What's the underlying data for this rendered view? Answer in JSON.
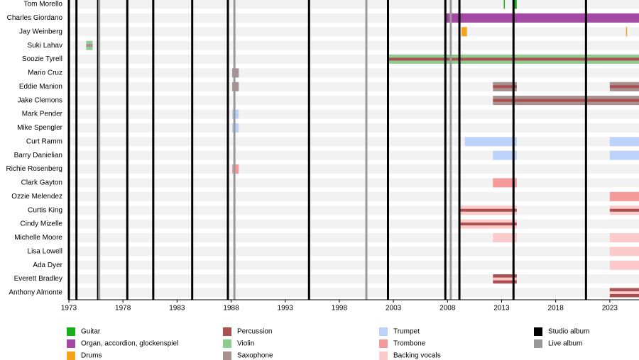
{
  "chart_data": {
    "type": "timeline",
    "xlim": [
      1973,
      2025.7
    ],
    "xticks": [
      1973,
      1978,
      1983,
      1988,
      1993,
      1998,
      2003,
      2008,
      2013,
      2018,
      2023
    ],
    "roles": [
      {
        "name": "Guitar",
        "color": "#1aaf1a"
      },
      {
        "name": "Organ, accordion, glockenspiel",
        "color": "#a349a4"
      },
      {
        "name": "Drums",
        "color": "#f7a21b"
      },
      {
        "name": "Percussion",
        "color": "#aa5050"
      },
      {
        "name": "Violin",
        "color": "#8fcc8f"
      },
      {
        "name": "Saxophone",
        "color": "#a89090"
      },
      {
        "name": "Trumpet",
        "color": "#bdd2fa"
      },
      {
        "name": "Trombone",
        "color": "#f59a9a"
      },
      {
        "name": "Backing vocals",
        "color": "#fccaca"
      }
    ],
    "albums": [
      {
        "name": "Studio album",
        "color": "#000000",
        "x": [
          1973.0,
          1973.7,
          1975.7,
          1978.4,
          1980.8,
          1984.4,
          1987.7,
          1995.2,
          2002.5,
          2007.8,
          2009.1,
          2014.1,
          2020.8
        ]
      },
      {
        "name": "Live album",
        "color": "#999999",
        "x": [
          1975.8,
          1988.3,
          2000.5,
          2008.3
        ]
      }
    ],
    "members": [
      {
        "name": "Tom Morello",
        "bars": [
          {
            "role": "Guitar",
            "start": 2013.2,
            "end": 2013.3
          },
          {
            "role": "Guitar",
            "start": 2014.1,
            "end": 2014.4
          }
        ]
      },
      {
        "name": "Charles Giordano",
        "bars": [
          {
            "role": "Organ, accordion, glockenspiel",
            "start": 2007.8,
            "end": 2025.7
          }
        ]
      },
      {
        "name": "Jay Weinberg",
        "bars": [
          {
            "role": "Drums",
            "start": 2009.3,
            "end": 2009.8
          },
          {
            "role": "Drums",
            "start": 2024.5,
            "end": 2024.6
          }
        ]
      },
      {
        "name": "Suki Lahav",
        "bars": [
          {
            "role": "Violin",
            "start": 1974.6,
            "end": 1975.2,
            "stripe": "Saxophone"
          }
        ]
      },
      {
        "name": "Soozie Tyrell",
        "bars": [
          {
            "role": "Violin",
            "start": 2002.5,
            "end": 2025.7,
            "stripe": "Percussion"
          }
        ]
      },
      {
        "name": "Mario Cruz",
        "bars": [
          {
            "role": "Saxophone",
            "start": 1988.1,
            "end": 1988.7
          }
        ]
      },
      {
        "name": "Eddie Manion",
        "bars": [
          {
            "role": "Saxophone",
            "start": 1988.1,
            "end": 1988.7
          },
          {
            "role": "Saxophone",
            "start": 2012.2,
            "end": 2014.4,
            "stripe": "Percussion"
          },
          {
            "role": "Saxophone",
            "start": 2023.0,
            "end": 2025.7,
            "stripe": "Percussion"
          }
        ]
      },
      {
        "name": "Jake Clemons",
        "bars": [
          {
            "role": "Saxophone",
            "start": 2012.2,
            "end": 2025.7,
            "stripe": "Percussion"
          }
        ]
      },
      {
        "name": "Mark Pender",
        "bars": [
          {
            "role": "Trumpet",
            "start": 1988.1,
            "end": 1988.7
          }
        ]
      },
      {
        "name": "Mike Spengler",
        "bars": [
          {
            "role": "Trumpet",
            "start": 1988.1,
            "end": 1988.7
          }
        ]
      },
      {
        "name": "Curt Ramm",
        "bars": [
          {
            "role": "Trumpet",
            "start": 2009.6,
            "end": 2014.4
          },
          {
            "role": "Trumpet",
            "start": 2023.0,
            "end": 2025.7
          }
        ]
      },
      {
        "name": "Barry Danielian",
        "bars": [
          {
            "role": "Trumpet",
            "start": 2012.2,
            "end": 2014.4
          },
          {
            "role": "Trumpet",
            "start": 2023.0,
            "end": 2025.7
          }
        ]
      },
      {
        "name": "Richie Rosenberg",
        "bars": [
          {
            "role": "Trombone",
            "start": 1988.1,
            "end": 1988.7
          }
        ]
      },
      {
        "name": "Clark Gayton",
        "bars": [
          {
            "role": "Trombone",
            "start": 2012.2,
            "end": 2014.4
          }
        ]
      },
      {
        "name": "Ozzie Melendez",
        "bars": [
          {
            "role": "Trombone",
            "start": 2023.0,
            "end": 2025.7
          }
        ]
      },
      {
        "name": "Curtis King",
        "bars": [
          {
            "role": "Backing vocals",
            "start": 2009.2,
            "end": 2014.4,
            "stripe": "Percussion"
          },
          {
            "role": "Backing vocals",
            "start": 2023.0,
            "end": 2025.7,
            "stripe": "Percussion"
          }
        ]
      },
      {
        "name": "Cindy Mizelle",
        "bars": [
          {
            "role": "Backing vocals",
            "start": 2009.2,
            "end": 2014.4,
            "stripe": "Percussion"
          }
        ]
      },
      {
        "name": "Michelle Moore",
        "bars": [
          {
            "role": "Backing vocals",
            "start": 2012.2,
            "end": 2014.4
          },
          {
            "role": "Backing vocals",
            "start": 2023.0,
            "end": 2025.7
          }
        ]
      },
      {
        "name": "Lisa Lowell",
        "bars": [
          {
            "role": "Backing vocals",
            "start": 2023.0,
            "end": 2025.7
          }
        ]
      },
      {
        "name": "Ada Dyer",
        "bars": [
          {
            "role": "Backing vocals",
            "start": 2023.0,
            "end": 2025.7
          }
        ]
      },
      {
        "name": "Everett Bradley",
        "bars": [
          {
            "role": "Percussion",
            "start": 2012.2,
            "end": 2014.4,
            "stripe": "Backing vocals"
          }
        ]
      },
      {
        "name": "Anthony Almonte",
        "bars": [
          {
            "role": "Percussion",
            "start": 2023.0,
            "end": 2025.7,
            "stripe": "Backing vocals"
          }
        ]
      }
    ]
  }
}
